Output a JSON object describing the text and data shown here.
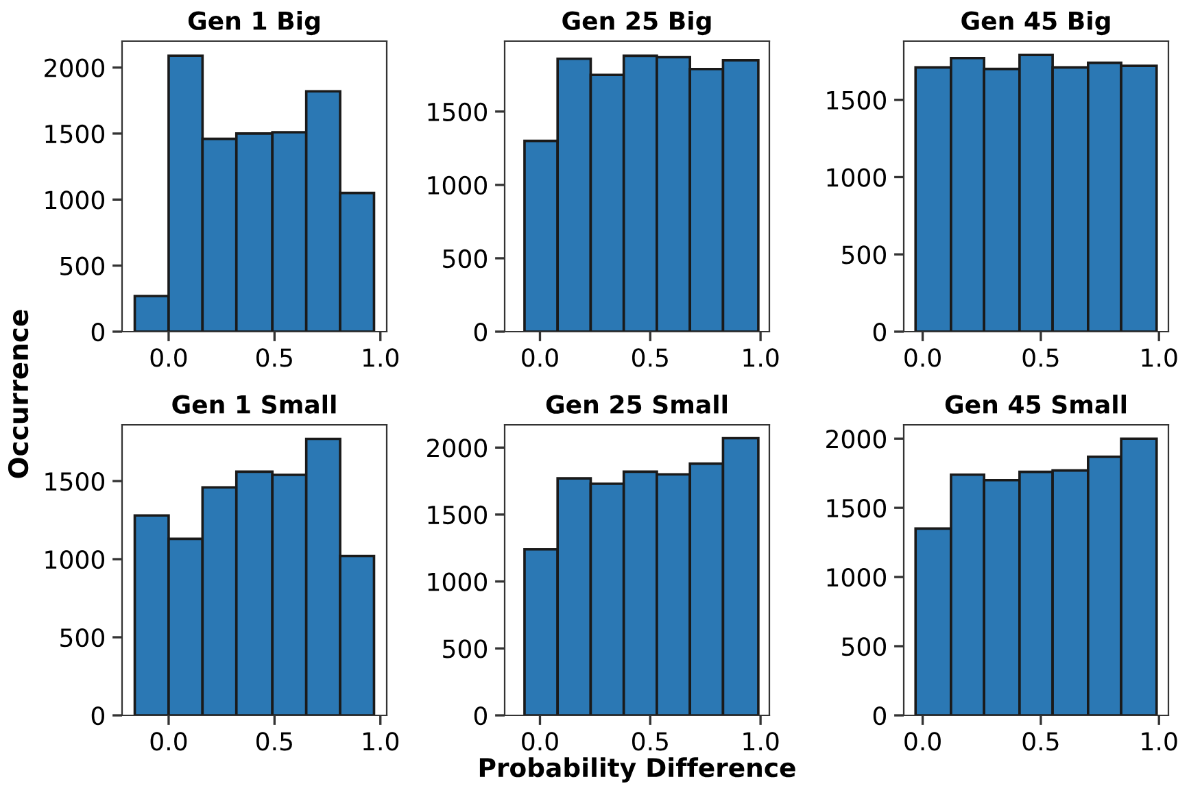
{
  "chart_data": [
    {
      "type": "histogram",
      "title": "Gen 1 Big",
      "ylabel": "Occurrence",
      "color": "#2b78b4",
      "bins": [
        -0.16,
        0.0,
        0.16,
        0.32,
        0.49,
        0.65,
        0.81,
        0.97
      ],
      "values": [
        270,
        2090,
        1460,
        1500,
        1510,
        1820,
        1050
      ],
      "xlim": [
        -0.22,
        1.03
      ],
      "ylim": [
        0,
        2200
      ],
      "xticks": [
        {
          "value": 0,
          "label": "0.0"
        },
        {
          "value": 0.5,
          "label": "0.5"
        },
        {
          "value": 1,
          "label": "1.0"
        }
      ],
      "yticks": [
        0,
        500,
        1000,
        1500,
        2000
      ]
    },
    {
      "type": "histogram",
      "title": "Gen 25 Big",
      "color": "#2b78b4",
      "bins": [
        -0.07,
        0.08,
        0.23,
        0.38,
        0.53,
        0.68,
        0.83,
        0.99
      ],
      "values": [
        1300,
        1860,
        1750,
        1880,
        1870,
        1790,
        1850
      ],
      "xlim": [
        -0.16,
        1.04
      ],
      "ylim": [
        0,
        1980
      ],
      "xticks": [
        {
          "value": 0,
          "label": "0.0"
        },
        {
          "value": 0.5,
          "label": "0.5"
        },
        {
          "value": 1,
          "label": "1.0"
        }
      ],
      "yticks": [
        0,
        500,
        1000,
        1500
      ]
    },
    {
      "type": "histogram",
      "title": "Gen 45 Big",
      "color": "#2b78b4",
      "bins": [
        -0.03,
        0.12,
        0.26,
        0.41,
        0.55,
        0.7,
        0.84,
        0.99
      ],
      "values": [
        1710,
        1770,
        1700,
        1790,
        1710,
        1740,
        1720
      ],
      "xlim": [
        -0.08,
        1.04
      ],
      "ylim": [
        0,
        1880
      ],
      "xticks": [
        {
          "value": 0,
          "label": "0.0"
        },
        {
          "value": 0.5,
          "label": "0.5"
        },
        {
          "value": 1,
          "label": "1.0"
        }
      ],
      "yticks": [
        0,
        500,
        1000,
        1500
      ]
    },
    {
      "type": "histogram",
      "title": "Gen 1 Small",
      "color": "#2b78b4",
      "bins": [
        -0.16,
        0.0,
        0.16,
        0.32,
        0.49,
        0.65,
        0.81,
        0.97
      ],
      "values": [
        1280,
        1130,
        1460,
        1560,
        1540,
        1770,
        1020
      ],
      "xlim": [
        -0.22,
        1.03
      ],
      "ylim": [
        0,
        1860
      ],
      "xticks": [
        {
          "value": 0,
          "label": "0.0"
        },
        {
          "value": 0.5,
          "label": "0.5"
        },
        {
          "value": 1,
          "label": "1.0"
        }
      ],
      "yticks": [
        0,
        500,
        1000,
        1500
      ]
    },
    {
      "type": "histogram",
      "title": "Gen 25 Small",
      "xlabel": "Probability Difference",
      "color": "#2b78b4",
      "bins": [
        -0.07,
        0.08,
        0.23,
        0.38,
        0.53,
        0.68,
        0.83,
        0.99
      ],
      "values": [
        1240,
        1770,
        1730,
        1820,
        1800,
        1880,
        2070
      ],
      "xlim": [
        -0.16,
        1.04
      ],
      "ylim": [
        0,
        2170
      ],
      "xticks": [
        {
          "value": 0,
          "label": "0.0"
        },
        {
          "value": 0.5,
          "label": "0.5"
        },
        {
          "value": 1,
          "label": "1.0"
        }
      ],
      "yticks": [
        0,
        500,
        1000,
        1500,
        2000
      ]
    },
    {
      "type": "histogram",
      "title": "Gen 45 Small",
      "color": "#2b78b4",
      "bins": [
        -0.03,
        0.12,
        0.26,
        0.41,
        0.55,
        0.7,
        0.84,
        0.99
      ],
      "values": [
        1350,
        1740,
        1700,
        1760,
        1770,
        1870,
        2000
      ],
      "xlim": [
        -0.08,
        1.04
      ],
      "ylim": [
        0,
        2100
      ],
      "xticks": [
        {
          "value": 0,
          "label": "0.0"
        },
        {
          "value": 0.5,
          "label": "0.5"
        },
        {
          "value": 1,
          "label": "1.0"
        }
      ],
      "yticks": [
        0,
        500,
        1000,
        1500,
        2000
      ]
    }
  ]
}
